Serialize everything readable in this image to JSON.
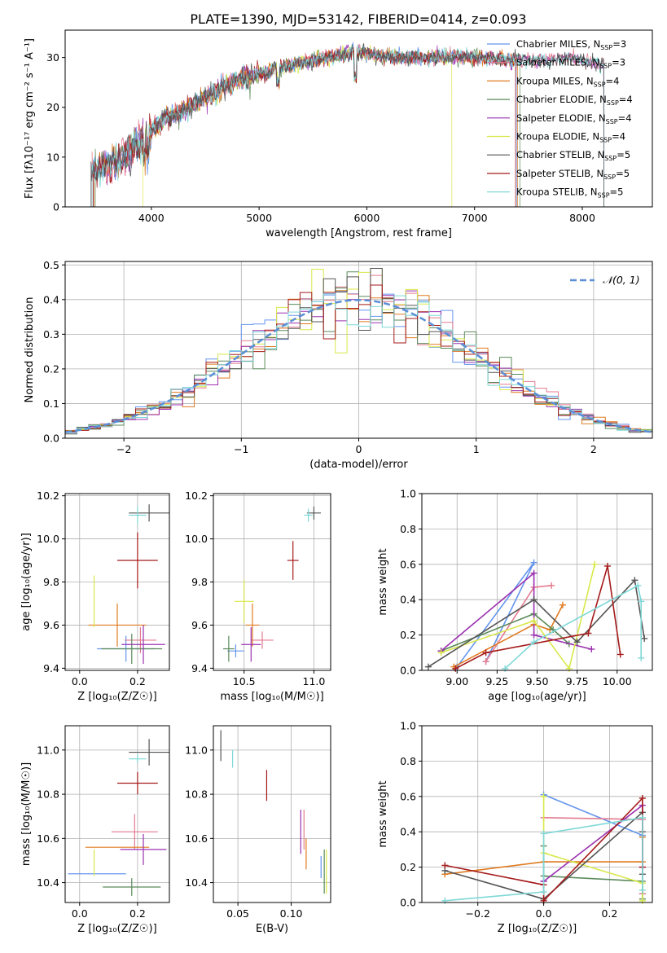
{
  "figure_title": "PLATE=1390, MJD=53142, FIBERID=0414, z=0.093",
  "models": [
    {
      "key": "chabrier-miles",
      "label": "Chabrier MILES, N",
      "sub": "SSP",
      "n": "=3",
      "color": "#6495ed"
    },
    {
      "key": "salpeter-miles",
      "label": "Salpeter MILES, N",
      "sub": "SSP",
      "n": "=3",
      "color": "#e37a8f"
    },
    {
      "key": "kroupa-miles",
      "label": "Kroupa MILES, N",
      "sub": "SSP",
      "n": "=4",
      "color": "#e07b20"
    },
    {
      "key": "chabrier-elodie",
      "label": "Chabrier ELODIE, N",
      "sub": "SSP",
      "n": "=4",
      "color": "#5a8a5a"
    },
    {
      "key": "salpeter-elodie",
      "label": "Salpeter ELODIE, N",
      "sub": "SSP",
      "n": "=4",
      "color": "#9b30b0"
    },
    {
      "key": "kroupa-elodie",
      "label": "Kroupa ELODIE, N",
      "sub": "SSP",
      "n": "=4",
      "color": "#d8e84a"
    },
    {
      "key": "chabrier-stelib",
      "label": "Chabrier STELIB, N",
      "sub": "SSP",
      "n": "=5",
      "color": "#555555"
    },
    {
      "key": "salpeter-stelib",
      "label": "Salpeter STELIB, N",
      "sub": "SSP",
      "n": "=5",
      "color": "#a51a1a"
    },
    {
      "key": "kroupa-stelib",
      "label": "Kroupa STELIB, N",
      "sub": "SSP",
      "n": "=5",
      "color": "#7fd8d8"
    }
  ],
  "chart_data": [
    {
      "id": "spectrum",
      "type": "line",
      "xlabel": "wavelength [Angstrom, rest frame]",
      "ylabel": "Flux [fλ10⁻¹⁷ erg cm⁻² s⁻¹ A⁻¹]",
      "xlim": [
        3200,
        8650
      ],
      "ylim": [
        0,
        35.5
      ],
      "xticks": [
        4000,
        5000,
        6000,
        7000,
        8000
      ],
      "yticks": [
        0,
        10,
        20,
        30
      ],
      "grid": false,
      "legend": "upper-right",
      "continuum": {
        "x": [
          3450,
          3600,
          3700,
          3800,
          3900,
          4000,
          4100,
          4200,
          4300,
          4500,
          4700,
          4900,
          5100,
          5300,
          5500,
          5700,
          5900,
          6100,
          6300,
          6500,
          6700,
          6900,
          7100,
          7300,
          7500,
          7700,
          7900,
          8100,
          8200
        ],
        "y": [
          7.5,
          8.5,
          9.5,
          11,
          13,
          15.5,
          17.5,
          18.5,
          19.5,
          22,
          24.5,
          26,
          27.5,
          28.5,
          29.5,
          30.5,
          31,
          30.5,
          30,
          30,
          30,
          30,
          30,
          29.5,
          29.5,
          29.5,
          30,
          29,
          28.5
        ]
      },
      "ranges": [
        [
          3460,
          7390
        ],
        [
          3450,
          8200
        ],
        [
          3470,
          7400
        ],
        [
          3480,
          7420
        ],
        [
          3450,
          8200
        ],
        [
          3920,
          6790
        ],
        [
          3440,
          8200
        ],
        [
          3460,
          7380
        ],
        [
          3450,
          8200
        ]
      ]
    },
    {
      "id": "residuals",
      "type": "histogram",
      "xlabel": "(data-model)/error",
      "ylabel": "Normed distribution",
      "xlim": [
        -2.5,
        2.5
      ],
      "ylim": [
        0,
        0.51
      ],
      "xticks": [
        -2,
        -1,
        0,
        1,
        2
      ],
      "yticks": [
        0,
        0.1,
        0.2,
        0.3,
        0.4,
        0.5
      ],
      "grid": true,
      "legend": "upper-right",
      "gaussian_label": "𝒩(0, 1)",
      "gaussian_color": "#5b8fd6",
      "bin_width": 0.1
    },
    {
      "id": "age-z",
      "type": "errorbar",
      "xlabel": "Z [log₁₀(Z/Z☉)]",
      "ylabel": "age  [log₁₀(age/yr)]",
      "xlim": [
        -0.05,
        0.31
      ],
      "ylim": [
        9.39,
        10.21
      ],
      "xticks": [
        0.0,
        0.2
      ],
      "yticks": [
        9.4,
        9.6,
        9.8,
        10.0,
        10.2
      ],
      "points": [
        {
          "x": 0.16,
          "xerr": 0.1,
          "y": 9.49,
          "yerr": 0.06
        },
        {
          "x": 0.21,
          "xerr": 0.055,
          "y": 9.53,
          "yerr": 0.06
        },
        {
          "x": 0.13,
          "xerr": 0.1,
          "y": 9.6,
          "yerr": 0.1
        },
        {
          "x": 0.18,
          "xerr": 0.105,
          "y": 9.49,
          "yerr": 0.07
        },
        {
          "x": 0.22,
          "xerr": 0.075,
          "y": 9.51,
          "yerr": 0.09
        },
        {
          "x": 0.05,
          "xerr": 0.0,
          "y": 9.71,
          "yerr": 0.12
        },
        {
          "x": 0.24,
          "xerr": 0.07,
          "y": 10.12,
          "yerr": 0.04
        },
        {
          "x": 0.2,
          "xerr": 0.07,
          "y": 9.9,
          "yerr": 0.13
        },
        {
          "x": 0.2,
          "xerr": 0.03,
          "y": 10.11,
          "yerr": 0.04
        }
      ]
    },
    {
      "id": "age-mass",
      "type": "errorbar",
      "xlabel": "mass [log₁₀(M/M☉)]",
      "ylabel": "",
      "xlim": [
        10.28,
        11.12
      ],
      "ylim": [
        9.39,
        10.21
      ],
      "xticks": [
        10.5,
        11.0
      ],
      "yticks": [
        9.4,
        9.6,
        9.8,
        10.0,
        10.2
      ],
      "points": [
        {
          "x": 10.44,
          "xerr": 0.06,
          "y": 9.48,
          "yerr": 0.03
        },
        {
          "x": 10.63,
          "xerr": 0.08,
          "y": 9.53,
          "yerr": 0.04
        },
        {
          "x": 10.56,
          "xerr": 0.05,
          "y": 9.6,
          "yerr": 0.1
        },
        {
          "x": 10.39,
          "xerr": 0.04,
          "y": 9.49,
          "yerr": 0.06
        },
        {
          "x": 10.55,
          "xerr": 0.07,
          "y": 9.51,
          "yerr": 0.08
        },
        {
          "x": 10.5,
          "xerr": 0.07,
          "y": 9.71,
          "yerr": 0.1
        },
        {
          "x": 11.0,
          "xerr": 0.05,
          "y": 10.12,
          "yerr": 0.03
        },
        {
          "x": 10.85,
          "xerr": 0.04,
          "y": 9.9,
          "yerr": 0.09
        },
        {
          "x": 10.96,
          "xerr": 0.03,
          "y": 10.11,
          "yerr": 0.03
        }
      ]
    },
    {
      "id": "weight-age",
      "type": "line",
      "xlabel": "age  [log₁₀(age/yr)]",
      "ylabel": "mass weight",
      "xlim": [
        8.78,
        10.22
      ],
      "ylim": [
        0,
        1.0
      ],
      "xticks": [
        9.0,
        9.25,
        9.5,
        9.75,
        10.0
      ],
      "yticks": [
        0.0,
        0.2,
        0.4,
        0.6,
        0.8,
        1.0
      ],
      "grid": true,
      "series": [
        {
          "x": [
            9.0,
            9.48,
            9.18
          ],
          "y": [
            0.02,
            0.61,
            0.05
          ]
        },
        {
          "x": [
            9.18,
            9.48,
            9.59
          ],
          "y": [
            0.05,
            0.47,
            0.48
          ]
        },
        {
          "x": [
            8.98,
            9.48,
            9.58,
            9.66
          ],
          "y": [
            0.02,
            0.26,
            0.23,
            0.37
          ]
        },
        {
          "x": [
            8.9,
            9.48,
            9.6,
            9.7
          ],
          "y": [
            0.11,
            0.32,
            0.23,
            0.15
          ]
        },
        {
          "x": [
            8.9,
            9.48,
            9.48,
            9.84
          ],
          "y": [
            0.11,
            0.55,
            0.2,
            0.12
          ]
        },
        {
          "x": [
            8.9,
            9.48,
            9.7,
            9.86
          ],
          "y": [
            0.1,
            0.28,
            0.01,
            0.6
          ]
        },
        {
          "x": [
            8.82,
            9.48,
            9.75,
            10.11,
            10.17
          ],
          "y": [
            0.02,
            0.4,
            0.16,
            0.51,
            0.18
          ]
        },
        {
          "x": [
            8.99,
            9.18,
            9.82,
            9.94,
            10.02
          ],
          "y": [
            0.01,
            0.1,
            0.21,
            0.59,
            0.09
          ]
        },
        {
          "x": [
            9.3,
            9.48,
            10.13,
            10.15,
            10.15
          ],
          "y": [
            0.01,
            0.16,
            0.48,
            0.39,
            0.07
          ]
        }
      ]
    },
    {
      "id": "mass-z",
      "type": "errorbar",
      "xlabel": "Z [log₁₀(Z/Z☉)]",
      "ylabel": "mass [log₁₀(M/M☉)]",
      "xlim": [
        -0.05,
        0.31
      ],
      "ylim": [
        10.31,
        11.11
      ],
      "xticks": [
        0.0,
        0.2
      ],
      "yticks": [
        10.4,
        10.6,
        10.8,
        11.0
      ],
      "points": [
        {
          "x": 0.06,
          "xerr": 0.1,
          "y": 10.44,
          "yerr": 0.0
        },
        {
          "x": 0.19,
          "xerr": 0.08,
          "y": 10.63,
          "yerr": 0.08
        },
        {
          "x": 0.13,
          "xerr": 0.11,
          "y": 10.56,
          "yerr": 0.0
        },
        {
          "x": 0.18,
          "xerr": 0.1,
          "y": 10.38,
          "yerr": 0.04
        },
        {
          "x": 0.22,
          "xerr": 0.08,
          "y": 10.55,
          "yerr": 0.07
        },
        {
          "x": 0.05,
          "xerr": 0.0,
          "y": 10.49,
          "yerr": 0.06
        },
        {
          "x": 0.24,
          "xerr": 0.07,
          "y": 10.99,
          "yerr": 0.06
        },
        {
          "x": 0.2,
          "xerr": 0.07,
          "y": 10.85,
          "yerr": 0.05
        },
        {
          "x": 0.2,
          "xerr": 0.03,
          "y": 10.96,
          "yerr": 0.02
        }
      ]
    },
    {
      "id": "mass-ebv",
      "type": "errorbar",
      "xlabel": "E(B-V)",
      "ylabel": "",
      "xlim": [
        0.027,
        0.137
      ],
      "ylim": [
        10.31,
        11.11
      ],
      "xticks": [
        0.05,
        0.1
      ],
      "yticks": [
        10.4,
        10.6,
        10.8,
        11.0
      ],
      "points": [
        {
          "x": 0.128,
          "xerr": 0.0,
          "y": 10.47,
          "yerr": 0.05
        },
        {
          "x": 0.112,
          "xerr": 0.0,
          "y": 10.64,
          "yerr": 0.09
        },
        {
          "x": 0.114,
          "xerr": 0.0,
          "y": 10.53,
          "yerr": 0.07
        },
        {
          "x": 0.131,
          "xerr": 0.0,
          "y": 10.45,
          "yerr": 0.1
        },
        {
          "x": 0.109,
          "xerr": 0.0,
          "y": 10.63,
          "yerr": 0.1
        },
        {
          "x": 0.133,
          "xerr": 0.0,
          "y": 10.45,
          "yerr": 0.1
        },
        {
          "x": 0.034,
          "xerr": 0.0,
          "y": 11.02,
          "yerr": 0.07
        },
        {
          "x": 0.077,
          "xerr": 0.0,
          "y": 10.84,
          "yerr": 0.07
        },
        {
          "x": 0.045,
          "xerr": 0.0,
          "y": 10.96,
          "yerr": 0.04
        }
      ]
    },
    {
      "id": "weight-z",
      "type": "line",
      "xlabel": "Z [log₁₀(Z/Z☉)]",
      "ylabel": "mass weight",
      "xlim": [
        -0.37,
        0.33
      ],
      "ylim": [
        0,
        1.0
      ],
      "xticks": [
        -0.2,
        0.0,
        0.2
      ],
      "yticks": [
        0.0,
        0.2,
        0.4,
        0.6,
        0.8,
        1.0
      ],
      "grid": true,
      "series": [
        {
          "x": [
            0.0,
            0.3,
            0.3
          ],
          "y": [
            0.61,
            0.38,
            0.05
          ]
        },
        {
          "x": [
            0.0,
            0.3,
            0.3
          ],
          "y": [
            0.48,
            0.47,
            0.05
          ]
        },
        {
          "x": [
            -0.3,
            0.0,
            0.3,
            0.3
          ],
          "y": [
            0.16,
            0.23,
            0.23,
            0.37
          ]
        },
        {
          "x": [
            0.0,
            0.0,
            0.3,
            0.3
          ],
          "y": [
            0.32,
            0.15,
            0.12,
            0.02
          ]
        },
        {
          "x": [
            0.0,
            0.0,
            0.3,
            0.3
          ],
          "y": [
            0.12,
            0.12,
            0.55,
            0.2
          ]
        },
        {
          "x": [
            0.0,
            0.0,
            0.3,
            0.3
          ],
          "y": [
            0.6,
            0.28,
            0.11,
            0.01
          ]
        },
        {
          "x": [
            -0.3,
            0.0,
            0.3,
            0.3,
            0.3
          ],
          "y": [
            0.18,
            0.02,
            0.51,
            0.4,
            0.16
          ]
        },
        {
          "x": [
            -0.3,
            0.0,
            0.0,
            0.3,
            0.3
          ],
          "y": [
            0.21,
            0.1,
            0.01,
            0.59,
            0.2
          ]
        },
        {
          "x": [
            -0.3,
            0.0,
            0.0,
            0.3,
            0.3
          ],
          "y": [
            0.01,
            0.06,
            0.39,
            0.48,
            0.07
          ]
        }
      ]
    }
  ]
}
